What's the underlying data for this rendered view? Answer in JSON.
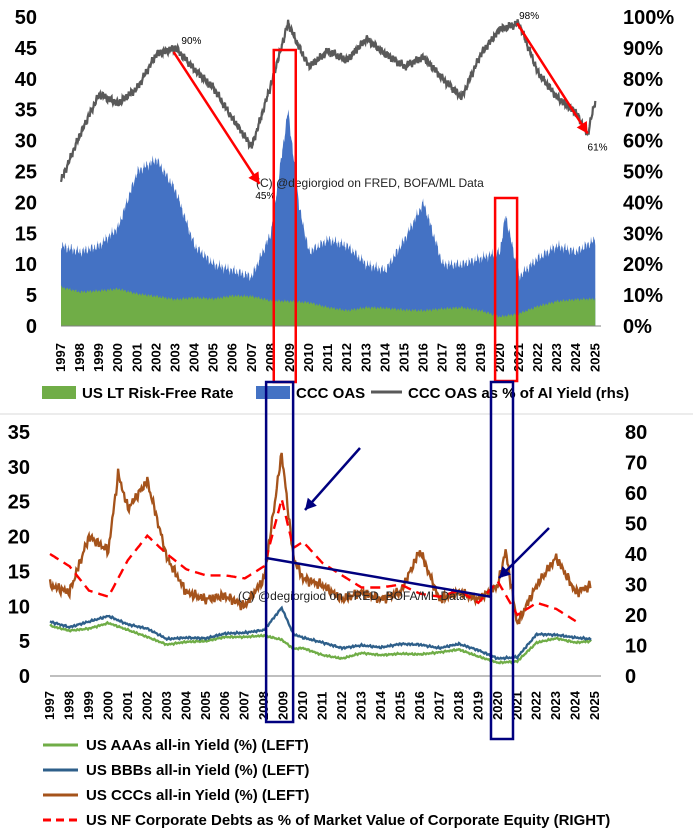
{
  "credit": "(C) @degiorgiod on FRED, BOFA/ML Data",
  "chart_data": [
    {
      "type": "area",
      "left_axis": {
        "ylim": [
          0,
          50
        ],
        "ticks": [
          "0",
          "5",
          "10",
          "15",
          "20",
          "25",
          "30",
          "35",
          "40",
          "45",
          "50"
        ]
      },
      "right_axis": {
        "ylim": [
          0,
          100
        ],
        "ticks": [
          "0%",
          "10%",
          "20%",
          "30%",
          "40%",
          "50%",
          "60%",
          "70%",
          "80%",
          "90%",
          "100%"
        ]
      },
      "x_ticks": [
        "1997",
        "1998",
        "1999",
        "2000",
        "2001",
        "2002",
        "2003",
        "2004",
        "2005",
        "2006",
        "2007",
        "2008",
        "2009",
        "2010",
        "2011",
        "2012",
        "2013",
        "2014",
        "2015",
        "2016",
        "2017",
        "2018",
        "2019",
        "2020",
        "2021",
        "2022",
        "2023",
        "2024",
        "2025"
      ],
      "legend": [
        "US LT Risk-Free Rate",
        "CCC OAS",
        "CCC OAS as % of Al Yield (rhs)"
      ],
      "colors": {
        "rf": "#70ad47",
        "ccc": "#4472c4",
        "ratio": "#595959",
        "highlight": "#ff0000",
        "arrow": "#ff0000"
      },
      "annotations": [
        "90%",
        "45%",
        "98%",
        "61%"
      ],
      "series": [
        {
          "name": "US LT Risk-Free Rate",
          "axis": "left",
          "x": [
            1997,
            1998,
            1999,
            2000,
            2001,
            2002,
            2003,
            2004,
            2005,
            2006,
            2007,
            2008,
            2009,
            2010,
            2011,
            2012,
            2013,
            2014,
            2015,
            2016,
            2017,
            2018,
            2019,
            2020,
            2021,
            2022,
            2023,
            2024,
            2025
          ],
          "values": [
            6.3,
            5.5,
            5.7,
            6.0,
            5.2,
            4.8,
            4.3,
            4.6,
            4.4,
            4.9,
            4.8,
            4.1,
            4.0,
            3.8,
            3.0,
            2.5,
            3.0,
            2.9,
            2.6,
            2.5,
            2.8,
            3.0,
            2.5,
            1.5,
            2.0,
            3.2,
            4.0,
            4.3,
            4.4
          ]
        },
        {
          "name": "CCC OAS",
          "axis": "left",
          "x": [
            1997,
            1998,
            1999,
            2000,
            2001,
            2002,
            2003,
            2004,
            2005,
            2006,
            2007,
            2008,
            2008.9,
            2009.5,
            2010,
            2011,
            2012,
            2013,
            2014,
            2015,
            2016,
            2017,
            2018,
            2019,
            2020,
            2020.3,
            2021,
            2022,
            2023,
            2024,
            2025
          ],
          "values": [
            13,
            12,
            13,
            16,
            25,
            27,
            22,
            13,
            10,
            9,
            8,
            15,
            35,
            19,
            12,
            14,
            13,
            10,
            9,
            14,
            20,
            10,
            10,
            11,
            12,
            18,
            8,
            11,
            13,
            12,
            14
          ]
        },
        {
          "name": "CCC OAS as % of Al Yield (rhs)",
          "axis": "right",
          "x": [
            1997,
            1998,
            1999,
            2000,
            2001,
            2002,
            2003,
            2004,
            2005,
            2006,
            2007,
            2008,
            2008.9,
            2009.5,
            2010,
            2011,
            2012,
            2013,
            2014,
            2015,
            2016,
            2017,
            2018,
            2019,
            2020,
            2021,
            2021.5,
            2022,
            2023,
            2024,
            2024.6,
            2025
          ],
          "values": [
            47,
            62,
            75,
            72,
            77,
            88,
            90,
            83,
            77,
            67,
            58,
            78,
            98,
            90,
            84,
            89,
            86,
            93,
            88,
            84,
            87,
            80,
            74,
            88,
            96,
            98,
            90,
            82,
            74,
            69,
            62,
            73
          ]
        }
      ]
    },
    {
      "type": "line",
      "left_axis": {
        "ylim": [
          0,
          35
        ],
        "ticks": [
          "0",
          "5",
          "10",
          "15",
          "20",
          "25",
          "30",
          "35"
        ]
      },
      "right_axis": {
        "ylim": [
          0,
          80
        ],
        "ticks": [
          "0",
          "10",
          "20",
          "30",
          "40",
          "50",
          "60",
          "70",
          "80"
        ]
      },
      "x_ticks": [
        "1997",
        "1998",
        "1999",
        "2000",
        "2001",
        "2002",
        "2003",
        "2004",
        "2005",
        "2006",
        "2007",
        "2008",
        "2009",
        "2010",
        "2011",
        "2012",
        "2013",
        "2014",
        "2015",
        "2016",
        "2017",
        "2018",
        "2019",
        "2020",
        "2021",
        "2022",
        "2023",
        "2024",
        "2025"
      ],
      "legend": [
        "US  AAAs all-in Yield (%) (LEFT)",
        "US  BBBs all-in Yield (%)  (LEFT)",
        "US  CCCs all-in Yield (%) (LEFT)",
        "US NF Corporate Debts as % of Market Value of Corporate Equity (RIGHT)"
      ],
      "colors": {
        "aaa": "#70ad47",
        "bbb": "#2e5f8a",
        "ccc": "#a5531b",
        "debt": "#ff0000",
        "highlight": "#00007f",
        "arrow": "#00007f"
      },
      "series": [
        {
          "name": "US  AAAs all-in Yield (%) (LEFT)",
          "axis": "left",
          "x": [
            1997,
            1998,
            1999,
            2000,
            2001,
            2002,
            2003,
            2004,
            2005,
            2006,
            2007,
            2008,
            2008.9,
            2009.5,
            2010,
            2011,
            2012,
            2013,
            2014,
            2015,
            2016,
            2017,
            2018,
            2019,
            2020,
            2021,
            2022,
            2023,
            2024,
            2024.8
          ],
          "values": [
            7.2,
            6.5,
            6.8,
            7.6,
            6.6,
            5.6,
            4.5,
            4.9,
            5.0,
            5.6,
            5.6,
            5.8,
            5.2,
            3.9,
            4.0,
            3.0,
            2.5,
            3.3,
            3.0,
            3.2,
            3.1,
            3.4,
            3.8,
            2.8,
            1.9,
            2.1,
            4.8,
            5.4,
            4.8,
            5.0
          ]
        },
        {
          "name": "US  BBBs all-in Yield (%)  (LEFT)",
          "axis": "left",
          "x": [
            1997,
            1998,
            1999,
            2000,
            2001,
            2002,
            2003,
            2004,
            2005,
            2006,
            2007,
            2008,
            2008.9,
            2009.5,
            2010,
            2011,
            2012,
            2013,
            2014,
            2015,
            2016,
            2017,
            2018,
            2019,
            2020,
            2021,
            2022,
            2023,
            2024,
            2024.8
          ],
          "values": [
            7.8,
            7.0,
            7.8,
            8.6,
            7.4,
            6.8,
            5.3,
            5.5,
            5.4,
            6.1,
            6.2,
            6.6,
            9.8,
            6.0,
            5.5,
            4.8,
            4.0,
            4.4,
            4.1,
            4.6,
            4.5,
            4.0,
            4.6,
            3.7,
            2.5,
            2.7,
            6.0,
            5.9,
            5.5,
            5.3
          ]
        },
        {
          "name": "US  CCCs all-in Yield (%) (LEFT)",
          "axis": "left",
          "x": [
            1997,
            1998,
            1999,
            2000,
            2000.5,
            2001,
            2002,
            2003,
            2004,
            2005,
            2006,
            2007,
            2008,
            2008.9,
            2009.5,
            2010,
            2011,
            2012,
            2013,
            2014,
            2015,
            2016,
            2017,
            2018,
            2019,
            2020,
            2020.4,
            2021,
            2022,
            2023,
            2024,
            2024.8
          ],
          "values": [
            13,
            12,
            20,
            18,
            29,
            24,
            28,
            17,
            12,
            11,
            11.5,
            10,
            14,
            32,
            17,
            14,
            13,
            11,
            12,
            11,
            12,
            18,
            11,
            12,
            11,
            13,
            18,
            7.5,
            13,
            17,
            12,
            13
          ]
        },
        {
          "name": "US NF Corporate Debts as % of Market Value of Corporate Equity (RIGHT)",
          "axis": "right",
          "x": [
            1997,
            1998,
            1999,
            2000,
            2001,
            2002,
            2003,
            2004,
            2005,
            2006,
            2007,
            2008,
            2008.9,
            2009.5,
            2010,
            2011,
            2012,
            2013,
            2014,
            2015,
            2016,
            2017,
            2018,
            2019,
            2020,
            2021,
            2022,
            2023,
            2024
          ],
          "values": [
            40,
            36,
            28,
            26,
            38,
            46,
            40,
            35,
            33,
            33,
            32,
            36,
            58,
            42,
            44,
            37,
            33,
            29,
            29,
            30,
            27,
            26,
            28,
            24,
            31,
            20,
            24,
            22,
            18
          ]
        }
      ]
    }
  ]
}
